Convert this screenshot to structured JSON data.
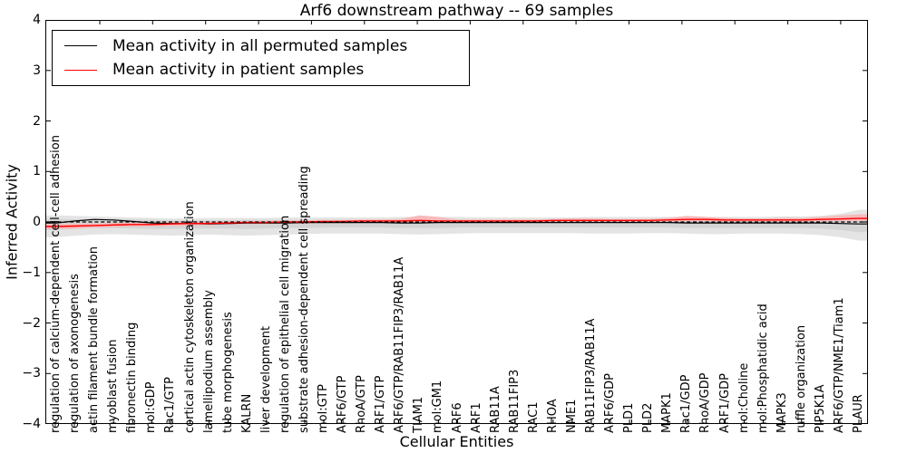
{
  "chart_data": {
    "type": "line",
    "title": "Arf6 downstream pathway -- 69 samples",
    "xlabel": "Cellular Entities",
    "ylabel": "Inferred Activity",
    "ylim": [
      -4,
      4
    ],
    "yticks": [
      4,
      3,
      2,
      1,
      0,
      -1,
      -2,
      -3,
      -4
    ],
    "yticklabels": [
      "4",
      "3",
      "2",
      "1",
      "0",
      "−1",
      "−2",
      "−3",
      "−4"
    ],
    "grid": false,
    "legend_position": "upper left",
    "categories": [
      "regulation of calcium-dependent cell-cell adhesion",
      "regulation of axonogenesis",
      "actin filament bundle formation",
      "myoblast fusion",
      "fibronectin binding",
      "mol:GDP",
      "Rac1/GTP",
      "cortical actin cytoskeleton organization",
      "lamellipodium assembly",
      "tube morphogenesis",
      "KALRN",
      "liver development",
      "regulation of epithelial cell migration",
      "substrate adhesion-dependent cell spreading",
      "mol:GTP",
      "ARF6/GTP",
      "RhoA/GTP",
      "ARF1/GTP",
      "ARF6/GTP/RAB11FIP3/RAB11A",
      "TIAM1",
      "mol:GM1",
      "ARF6",
      "ARF1",
      "RAB11A",
      "RAB11FIP3",
      "RAC1",
      "RHOA",
      "NME1",
      "RAB11FIP3/RAB11A",
      "ARF6/GDP",
      "PLD1",
      "PLD2",
      "MAPK1",
      "Rac1/GDP",
      "RhoA/GDP",
      "ARF1/GDP",
      "mol:Choline",
      "mol:Phosphatidic acid",
      "MAPK3",
      "ruffle organization",
      "PIP5K1A",
      "ARF6/GTP/NME1/Tiam1",
      "PLAUR"
    ],
    "series": [
      {
        "name": "Mean activity in all permuted samples",
        "color": "#000000",
        "values": [
          -0.02,
          0.02,
          0.05,
          0.04,
          0.01,
          -0.02,
          -0.03,
          -0.03,
          -0.04,
          -0.03,
          -0.02,
          -0.02,
          -0.02,
          -0.01,
          -0.01,
          -0.01,
          -0.01,
          -0.01,
          -0.02,
          -0.02,
          -0.01,
          -0.01,
          -0.01,
          -0.01,
          -0.01,
          -0.01,
          -0.01,
          -0.01,
          -0.01,
          -0.01,
          -0.01,
          -0.01,
          -0.01,
          -0.02,
          -0.02,
          -0.02,
          -0.02,
          -0.02,
          -0.02,
          -0.02,
          -0.02,
          -0.03,
          -0.04
        ]
      },
      {
        "name": "Mean activity in patient samples",
        "color": "#ff0000",
        "values": [
          -0.09,
          -0.08,
          -0.07,
          -0.06,
          -0.05,
          -0.05,
          -0.04,
          -0.03,
          -0.03,
          -0.02,
          -0.01,
          -0.01,
          0.0,
          0.0,
          0.01,
          0.01,
          0.02,
          0.02,
          0.02,
          0.03,
          0.02,
          0.02,
          0.02,
          0.02,
          0.02,
          0.02,
          0.03,
          0.03,
          0.03,
          0.03,
          0.03,
          0.03,
          0.04,
          0.05,
          0.05,
          0.04,
          0.04,
          0.04,
          0.04,
          0.04,
          0.05,
          0.06,
          0.07
        ]
      }
    ],
    "bands": [
      {
        "name": "permuted-confidence-outer",
        "color": "#e4e4e4",
        "upper": [
          0.13,
          0.12,
          0.11,
          0.1,
          0.09,
          0.08,
          0.07,
          0.07,
          0.08,
          0.08,
          0.08,
          0.08,
          0.09,
          0.09,
          0.09,
          0.09,
          0.09,
          0.09,
          0.1,
          0.1,
          0.1,
          0.1,
          0.09,
          0.09,
          0.09,
          0.09,
          0.09,
          0.09,
          0.1,
          0.1,
          0.1,
          0.1,
          0.1,
          0.1,
          0.1,
          0.1,
          0.1,
          0.1,
          0.11,
          0.11,
          0.12,
          0.16,
          0.24
        ],
        "lower": [
          -0.3,
          -0.27,
          -0.25,
          -0.24,
          -0.25,
          -0.26,
          -0.27,
          -0.26,
          -0.25,
          -0.26,
          -0.27,
          -0.26,
          -0.25,
          -0.24,
          -0.23,
          -0.23,
          -0.23,
          -0.23,
          -0.24,
          -0.25,
          -0.24,
          -0.23,
          -0.22,
          -0.22,
          -0.22,
          -0.22,
          -0.22,
          -0.22,
          -0.23,
          -0.23,
          -0.23,
          -0.22,
          -0.22,
          -0.23,
          -0.24,
          -0.24,
          -0.23,
          -0.23,
          -0.23,
          -0.24,
          -0.26,
          -0.3,
          -0.37
        ]
      },
      {
        "name": "permuted-confidence-inner",
        "color": "#d4d4d4",
        "upper": [
          0.06,
          0.05,
          0.06,
          0.06,
          0.05,
          0.04,
          0.03,
          0.03,
          0.03,
          0.03,
          0.04,
          0.04,
          0.04,
          0.04,
          0.04,
          0.04,
          0.04,
          0.04,
          0.04,
          0.05,
          0.05,
          0.04,
          0.04,
          0.04,
          0.04,
          0.04,
          0.04,
          0.04,
          0.04,
          0.04,
          0.05,
          0.05,
          0.05,
          0.05,
          0.05,
          0.05,
          0.05,
          0.05,
          0.05,
          0.05,
          0.06,
          0.08,
          0.12
        ],
        "lower": [
          -0.16,
          -0.14,
          -0.12,
          -0.12,
          -0.13,
          -0.14,
          -0.14,
          -0.13,
          -0.13,
          -0.13,
          -0.14,
          -0.13,
          -0.12,
          -0.12,
          -0.11,
          -0.11,
          -0.11,
          -0.11,
          -0.12,
          -0.12,
          -0.12,
          -0.11,
          -0.11,
          -0.11,
          -0.11,
          -0.11,
          -0.11,
          -0.11,
          -0.11,
          -0.11,
          -0.11,
          -0.11,
          -0.11,
          -0.12,
          -0.12,
          -0.12,
          -0.12,
          -0.12,
          -0.12,
          -0.12,
          -0.13,
          -0.16,
          -0.2
        ]
      },
      {
        "name": "patient-confidence",
        "color": "#f6baba",
        "upper": [
          -0.04,
          -0.03,
          -0.03,
          -0.02,
          -0.01,
          -0.01,
          0.0,
          0.0,
          0.0,
          0.01,
          0.02,
          0.02,
          0.03,
          0.03,
          0.04,
          0.04,
          0.05,
          0.05,
          0.06,
          0.13,
          0.1,
          0.05,
          0.05,
          0.05,
          0.05,
          0.05,
          0.06,
          0.07,
          0.07,
          0.06,
          0.06,
          0.06,
          0.08,
          0.12,
          0.1,
          0.08,
          0.07,
          0.07,
          0.08,
          0.08,
          0.1,
          0.13,
          0.15
        ],
        "lower": [
          -0.14,
          -0.13,
          -0.11,
          -0.1,
          -0.09,
          -0.09,
          -0.08,
          -0.07,
          -0.06,
          -0.05,
          -0.04,
          -0.04,
          -0.03,
          -0.03,
          -0.02,
          -0.02,
          -0.01,
          -0.01,
          -0.01,
          0.0,
          -0.01,
          -0.01,
          -0.01,
          -0.01,
          -0.01,
          -0.01,
          0.0,
          0.0,
          0.0,
          0.0,
          0.0,
          0.0,
          0.01,
          0.01,
          0.01,
          0.01,
          0.01,
          0.01,
          0.01,
          0.01,
          0.01,
          0.02,
          0.02
        ]
      }
    ],
    "zero_line": {
      "value": 0,
      "style": "dashed",
      "color": "#000000"
    }
  }
}
